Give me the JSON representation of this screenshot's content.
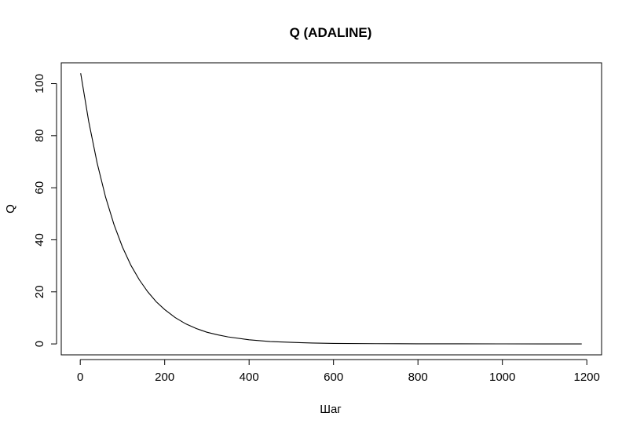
{
  "chart_data": {
    "type": "line",
    "title": "Q (ADALINE)",
    "xlabel": "Шаг",
    "ylabel": "Q",
    "xlim": [
      -45,
      1235
    ],
    "ylim": [
      -4.2,
      108
    ],
    "xticks": [
      0,
      200,
      400,
      600,
      800,
      1000,
      1200
    ],
    "yticks": [
      0,
      20,
      40,
      60,
      80,
      100
    ],
    "grid": false,
    "legend": "none",
    "line_color": "#000000",
    "series": [
      {
        "x": [
          1,
          20,
          40,
          60,
          80,
          100,
          120,
          140,
          160,
          180,
          200,
          225,
          250,
          275,
          300,
          325,
          350,
          400,
          450,
          500,
          550,
          600,
          700,
          800,
          900,
          1000,
          1100,
          1188
        ],
        "values": [
          104,
          85.5,
          69.5,
          56.4,
          45.8,
          37.2,
          30.2,
          24.6,
          20.0,
          16.2,
          13.2,
          10.1,
          7.7,
          5.9,
          4.5,
          3.5,
          2.7,
          1.6,
          0.9,
          0.6,
          0.35,
          0.2,
          0.1,
          0.05,
          0.03,
          0.02,
          0.01,
          0.0
        ]
      }
    ]
  }
}
